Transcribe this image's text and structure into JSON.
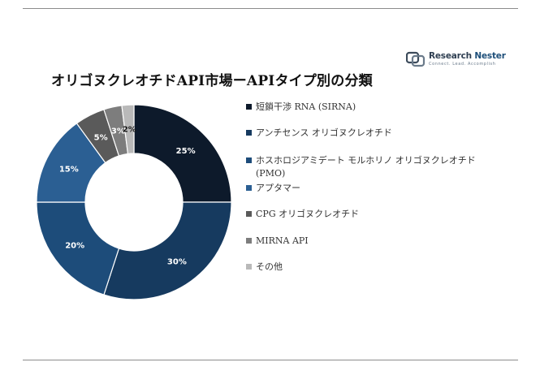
{
  "brand": {
    "name_part1": "Research",
    "name_part2": "Nester",
    "tagline": "Connect. Lead. Accomplish"
  },
  "title": "オリゴヌクレオチドAPI市場ーAPIタイプ別の分類",
  "chart_data": {
    "type": "pie",
    "donut": true,
    "title": "オリゴヌクレオチドAPI市場ーAPIタイプ別の分類",
    "legend_position": "right",
    "unit": "%",
    "slices": [
      {
        "label": "短鎖干渉 RNA (SIRNA)",
        "value": 25,
        "display": "25%",
        "color": "#0d1a2b",
        "label_color": "#ffffff"
      },
      {
        "label": "アンチセンス オリゴヌクレオチド",
        "value": 30,
        "display": "30%",
        "color": "#163a5f",
        "label_color": "#ffffff"
      },
      {
        "label": "ホスホロジアミデート モルホリノ オリゴヌクレオチド (PMO)",
        "value": 20,
        "display": "20%",
        "color": "#1d4c7a",
        "label_color": "#ffffff"
      },
      {
        "label": "アプタマー",
        "value": 15,
        "display": "15%",
        "color": "#2b5f93",
        "label_color": "#ffffff"
      },
      {
        "label": "CPG オリゴヌクレオチド",
        "value": 5,
        "display": "5%",
        "color": "#5a5a5a",
        "label_color": "#ffffff"
      },
      {
        "label": "MIRNA API",
        "value": 3,
        "display": "3%",
        "color": "#7d7d7d",
        "label_color": "#ffffff"
      },
      {
        "label": "その他",
        "value": 2,
        "display": "2%",
        "color": "#b9b9b9",
        "label_color": "#1a1a1a"
      }
    ]
  }
}
